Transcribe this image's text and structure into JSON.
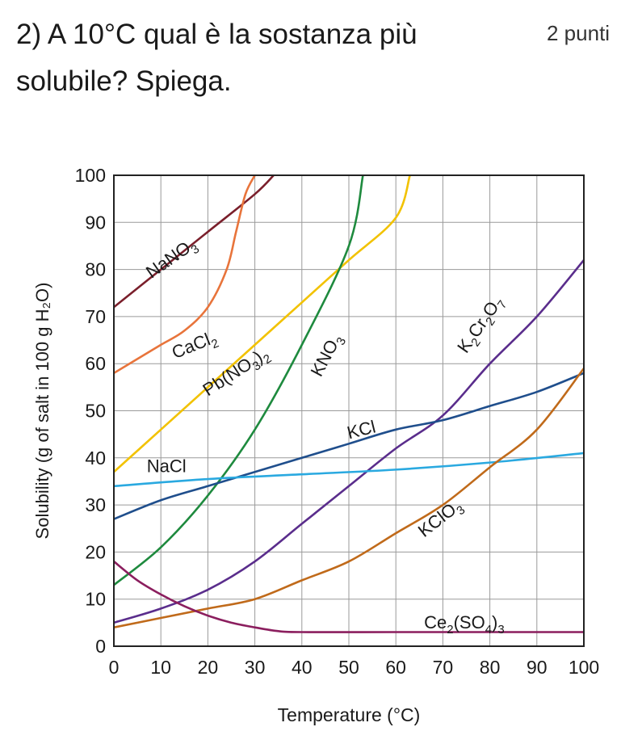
{
  "question": {
    "number": "2)",
    "text": "A 10°C qual è la sostanza più solubile? Spiega.",
    "points": "2 punti"
  },
  "chart_data": {
    "type": "line",
    "xlabel": "Temperature (°C)",
    "ylabel": "Solubility (g of salt in 100 g H₂O)",
    "xlim": [
      0,
      100
    ],
    "ylim": [
      0,
      100
    ],
    "xticks": [
      0,
      10,
      20,
      30,
      40,
      50,
      60,
      70,
      80,
      90,
      100
    ],
    "yticks": [
      0,
      10,
      20,
      30,
      40,
      50,
      60,
      70,
      80,
      90,
      100
    ],
    "grid": true,
    "series": [
      {
        "name": "NaNO3",
        "html": "NaNO<tspan dy='6' font-size='15'>3</tspan>",
        "color": "#7a1f2b",
        "x": [
          0,
          10,
          20,
          30,
          34
        ],
        "y": [
          72,
          80,
          88,
          96,
          100
        ]
      },
      {
        "name": "CaCl2",
        "html": "CaCl<tspan dy='6' font-size='15'>2</tspan>",
        "color": "#e8743b",
        "x": [
          0,
          5,
          10,
          15,
          20,
          24,
          26,
          28,
          30
        ],
        "y": [
          58,
          61,
          64,
          67,
          72,
          80,
          88,
          96,
          100
        ]
      },
      {
        "name": "Pb(NO3)2",
        "html": "Pb(NO<tspan dy='6' font-size='15'>3</tspan><tspan dy='-6'>)</tspan><tspan dy='6' font-size='15'>2</tspan>",
        "color": "#f2c200",
        "x": [
          0,
          10,
          20,
          30,
          40,
          50,
          60,
          63
        ],
        "y": [
          37,
          46,
          55,
          64,
          73,
          82,
          91,
          100
        ]
      },
      {
        "name": "KNO3",
        "html": "KNO<tspan dy='6' font-size='15'>3</tspan>",
        "color": "#1e8a3e",
        "x": [
          0,
          10,
          20,
          30,
          40,
          50,
          53
        ],
        "y": [
          13,
          21,
          32,
          46,
          64,
          85,
          100
        ]
      },
      {
        "name": "K2Cr2O7",
        "html": "K<tspan dy='6' font-size='15'>2</tspan><tspan dy='-6'>Cr</tspan><tspan dy='6' font-size='15'>2</tspan><tspan dy='-6'>O</tspan><tspan dy='6' font-size='15'>7</tspan>",
        "color": "#5a2d8c",
        "x": [
          0,
          10,
          20,
          30,
          40,
          50,
          60,
          70,
          80,
          90,
          100
        ],
        "y": [
          5,
          8,
          12,
          18,
          26,
          34,
          42,
          49,
          60,
          70,
          82
        ]
      },
      {
        "name": "KCl",
        "html": "KCl",
        "color": "#1f4e8c",
        "x": [
          0,
          10,
          20,
          30,
          40,
          50,
          60,
          70,
          80,
          90,
          100
        ],
        "y": [
          27,
          31,
          34,
          37,
          40,
          43,
          46,
          48,
          51,
          54,
          58
        ]
      },
      {
        "name": "NaCl",
        "html": "NaCl",
        "color": "#2aa9e0",
        "x": [
          0,
          20,
          40,
          60,
          80,
          100
        ],
        "y": [
          34,
          35.5,
          36.5,
          37.5,
          39,
          41
        ]
      },
      {
        "name": "KClO3",
        "html": "KClO<tspan dy='6' font-size='15'>3</tspan>",
        "color": "#c06a1a",
        "x": [
          0,
          10,
          20,
          30,
          40,
          50,
          60,
          70,
          80,
          90,
          100
        ],
        "y": [
          4,
          6,
          8,
          10,
          14,
          18,
          24,
          30,
          38,
          46,
          59
        ]
      },
      {
        "name": "Ce2(SO4)3",
        "html": "Ce<tspan dy='6' font-size='15'>2</tspan><tspan dy='-6'>(SO</tspan><tspan dy='6' font-size='15'>4</tspan><tspan dy='-6'>)</tspan><tspan dy='6' font-size='15'>3</tspan>",
        "color": "#8b1e5e",
        "x": [
          0,
          5,
          10,
          15,
          20,
          25,
          30,
          35,
          40,
          60,
          80,
          100
        ],
        "y": [
          18,
          14,
          11,
          8.5,
          6.5,
          5,
          4,
          3.2,
          3,
          3,
          3,
          3
        ]
      }
    ]
  }
}
